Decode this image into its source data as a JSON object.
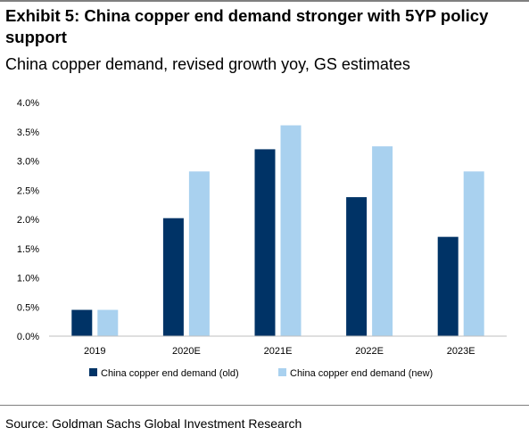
{
  "header": {
    "title": "Exhibit 5: China copper end demand stronger with 5YP policy support",
    "subtitle": "China copper demand, revised growth yoy, GS estimates"
  },
  "footer": {
    "source": "Source: Goldman Sachs Global Investment Research"
  },
  "colors": {
    "old": "#003366",
    "new": "#a9d1ef",
    "axis": "#bfbfbf",
    "rule": "#7f7f7f"
  },
  "chart_data": {
    "type": "bar",
    "title": "",
    "xlabel": "",
    "ylabel": "",
    "categories": [
      "2019",
      "2020E",
      "2021E",
      "2022E",
      "2023E"
    ],
    "series": [
      {
        "name": "China copper end demand (old)",
        "values": [
          0.45,
          2.02,
          3.2,
          2.38,
          1.7
        ]
      },
      {
        "name": "China copper end demand (new)",
        "values": [
          0.45,
          2.82,
          3.61,
          3.25,
          2.82
        ]
      }
    ],
    "ylim": [
      0,
      4.0
    ],
    "yticks": [
      "0.0%",
      "0.5%",
      "1.0%",
      "1.5%",
      "2.0%",
      "2.5%",
      "3.0%",
      "3.5%",
      "4.0%"
    ],
    "grid": false,
    "legend_position": "bottom"
  }
}
